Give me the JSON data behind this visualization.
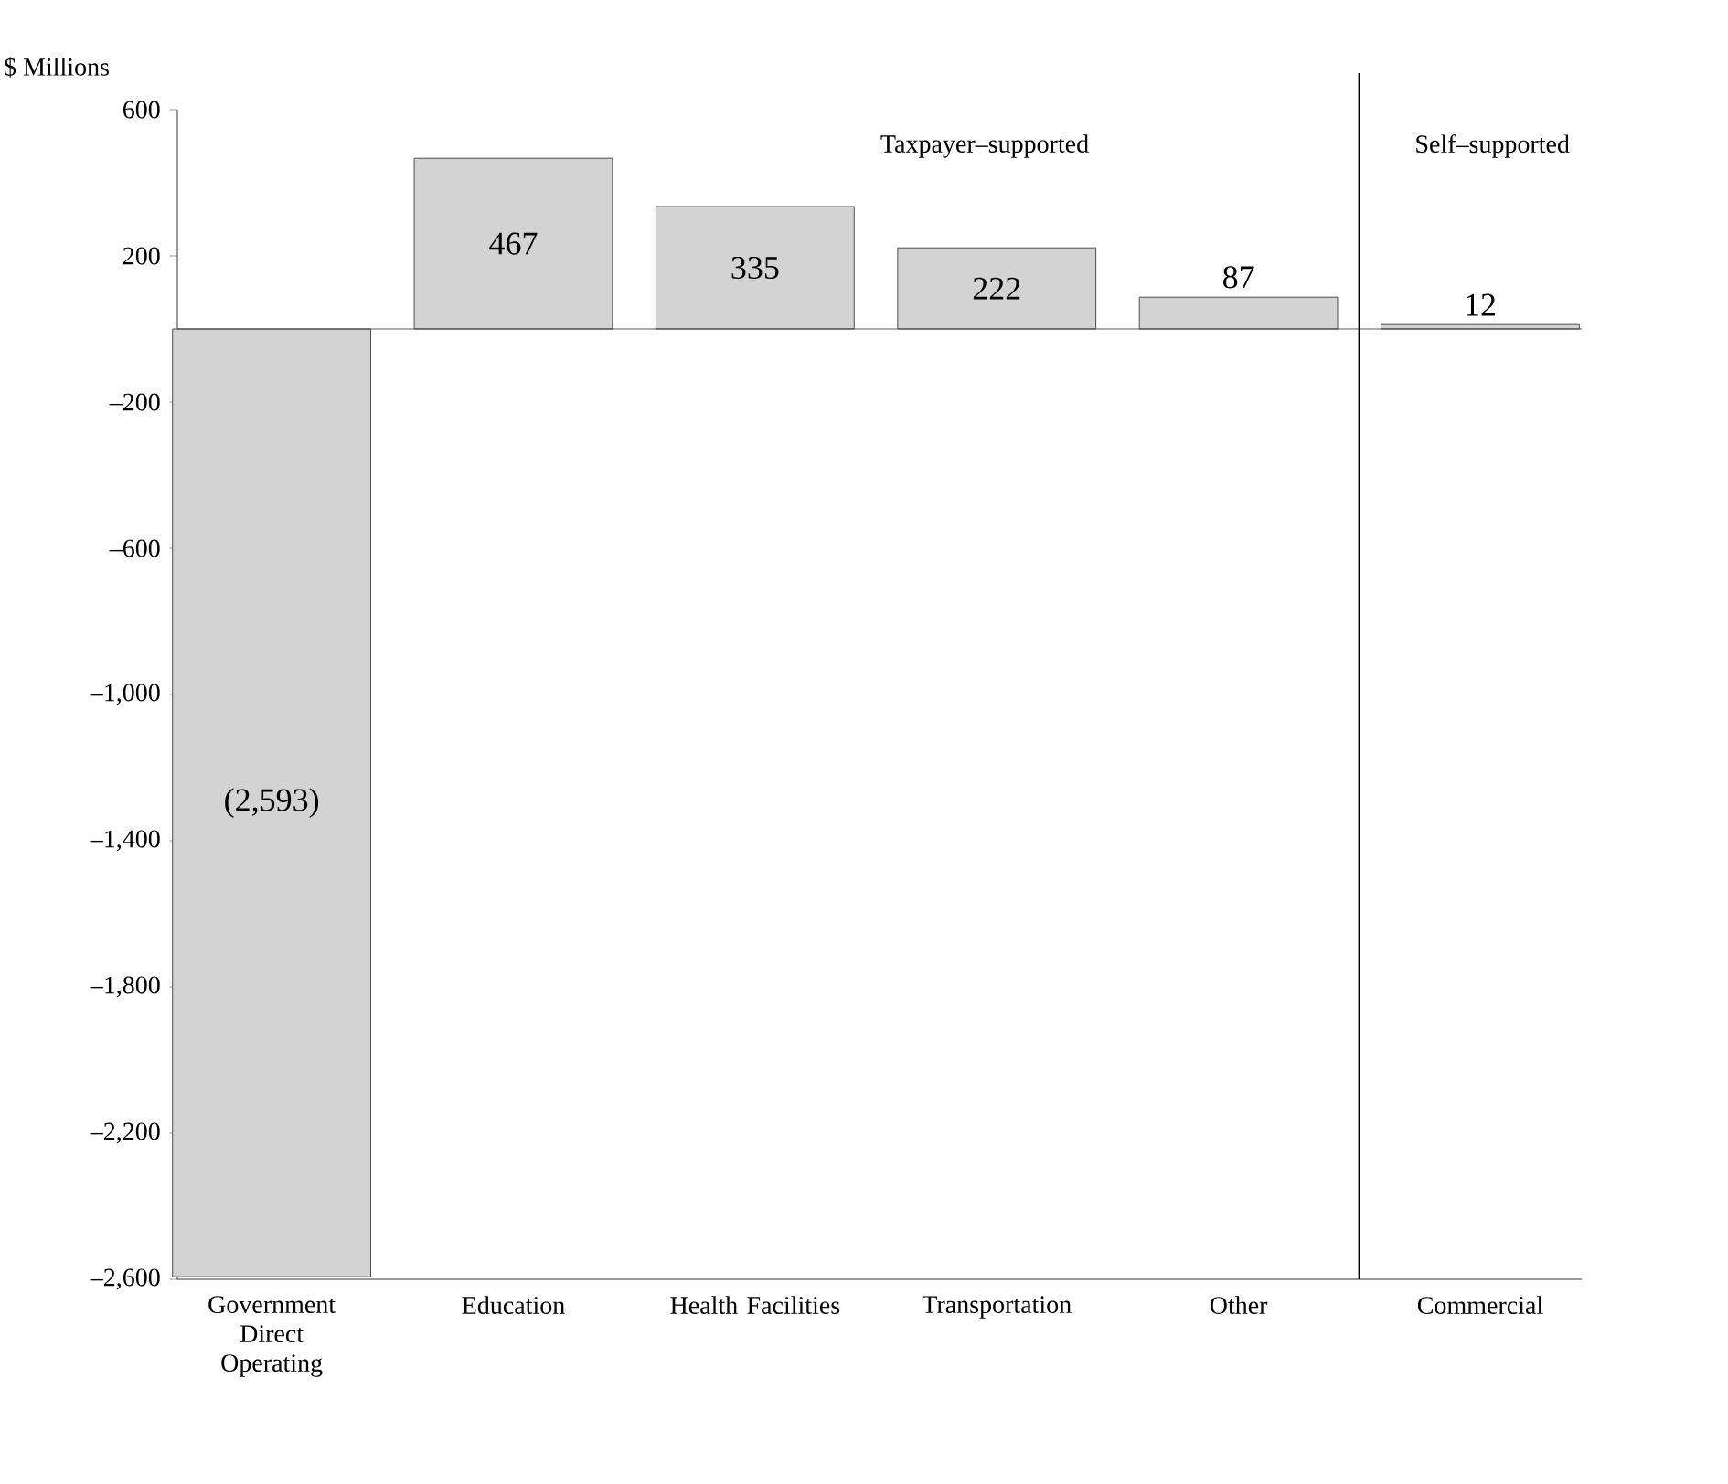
{
  "chart_data": {
    "type": "bar",
    "ylabel": "$ Millions",
    "categories": [
      "Government Direct Operating",
      "Education",
      "Health Facilities",
      "Transportation",
      "Other",
      "Commercial"
    ],
    "values": [
      -2593,
      467,
      335,
      222,
      87,
      12
    ],
    "value_labels": [
      "(2,593)",
      "467",
      "335",
      "222",
      "87",
      "12"
    ],
    "color": "#d3d3d3",
    "ylim": [
      -2600,
      600
    ],
    "yticks": [
      600,
      200,
      {
        "value": -200,
        "label": "–200"
      },
      {
        "value": -600,
        "label": "–600"
      },
      {
        "value": -1000,
        "label": "–1,000"
      },
      {
        "value": -1400,
        "label": "–1,400"
      },
      {
        "value": -1800,
        "label": "–1,800"
      },
      {
        "value": -2200,
        "label": "–2,200"
      },
      {
        "value": -2600,
        "label": "–2,600"
      }
    ],
    "annotations": [
      "Taxpayer–supported",
      "Self–supported"
    ],
    "grid": false
  }
}
